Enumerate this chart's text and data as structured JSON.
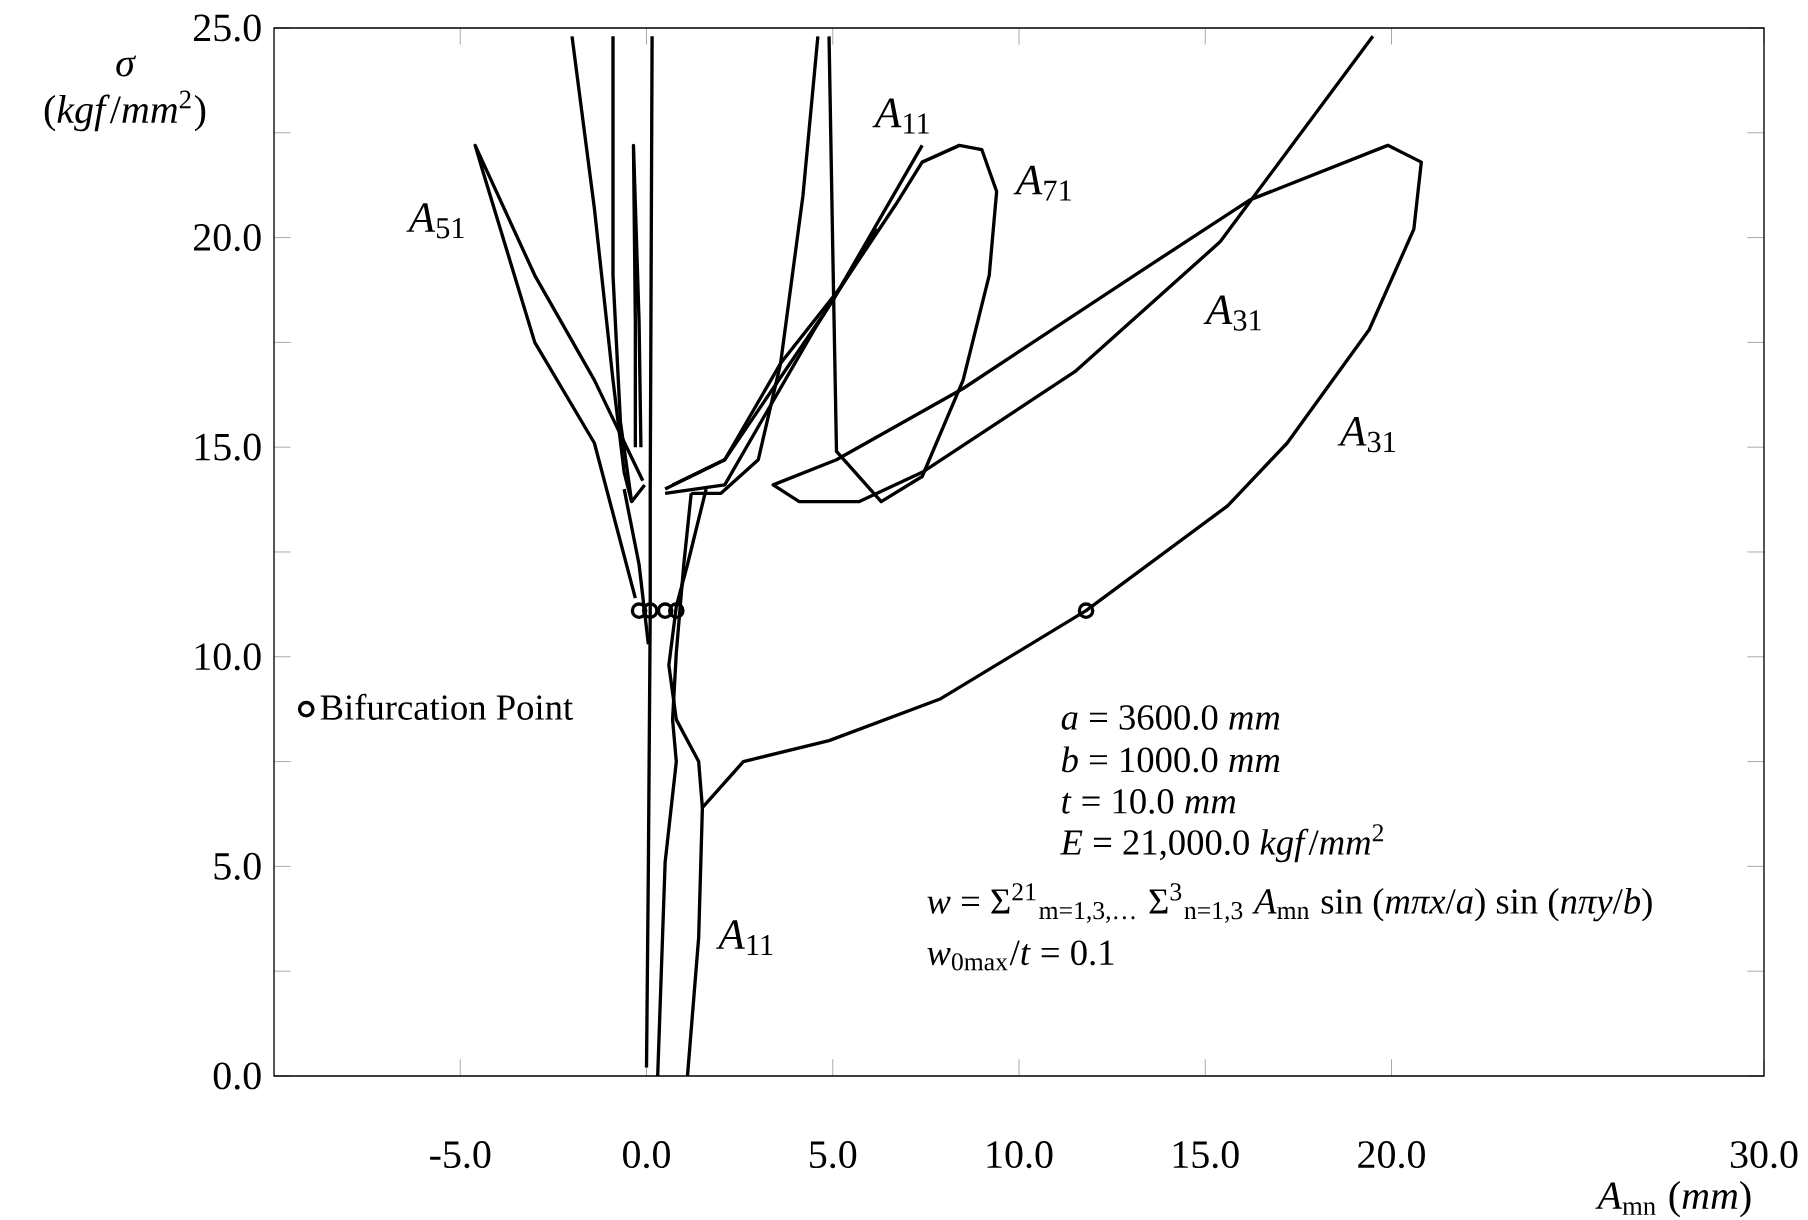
{
  "chart_data": {
    "type": "line",
    "xlabel": "*A*$_{mn}$ (*mm*)",
    "ylabel": "*σ* (*kgf*/*mm*$^{2}$)",
    "xlim": [
      -10,
      30
    ],
    "ylim": [
      0,
      25
    ],
    "xticks": [
      {
        "value": -5,
        "label": "-5.0"
      },
      {
        "value": 0,
        "label": "0.0"
      },
      {
        "value": 5,
        "label": "5.0"
      },
      {
        "value": 10,
        "label": "10.0"
      },
      {
        "value": 15,
        "label": "15.0"
      },
      {
        "value": 20,
        "label": "20.0"
      },
      {
        "value": 30,
        "label": "30.0"
      }
    ],
    "yticks": [
      {
        "value": 0,
        "label": "0.0"
      },
      {
        "value": 2.5,
        "label": null
      },
      {
        "value": 5,
        "label": "5.0"
      },
      {
        "value": 7.5,
        "label": null
      },
      {
        "value": 10,
        "label": "10.0"
      },
      {
        "value": 12.5,
        "label": null
      },
      {
        "value": 15,
        "label": "15.0"
      },
      {
        "value": 17.5,
        "label": null
      },
      {
        "value": 20,
        "label": "20.0"
      },
      {
        "value": 22.5,
        "label": null
      },
      {
        "value": 25,
        "label": "25.0"
      }
    ],
    "legend": "left",
    "series": [
      {
        "type": "line",
        "color": "#000000",
        "x": [
          1.1,
          1.4,
          1.5,
          2.6,
          4.9,
          7.9,
          11.8,
          15.6,
          17.2,
          19.4,
          20.6,
          20.8,
          19.9,
          16.2,
          13.1,
          8.5,
          5.1,
          3.4,
          4.1,
          5.7,
          7.4,
          11.5,
          15.4,
          19.5
        ],
        "values": [
          0,
          3.3,
          6.4,
          7.5,
          8.0,
          9.0,
          11.1,
          13.6,
          15.1,
          17.8,
          20.2,
          21.8,
          22.2,
          20.9,
          19.1,
          16.4,
          14.7,
          14.1,
          13.7,
          13.7,
          14.4,
          16.8,
          19.9,
          24.8
        ]
      },
      {
        "type": "line",
        "color": "#000000",
        "x": [
          4.9,
          5.0,
          5.1,
          6.3,
          7.4,
          8.5,
          9.2,
          9.4,
          9.0,
          8.4,
          7.4,
          6.7,
          5.2,
          3.6,
          2.1,
          0.7
        ],
        "values": [
          24.8,
          19.7,
          14.9,
          13.7,
          14.3,
          16.6,
          19.1,
          21.1,
          22.1,
          22.2,
          21.8,
          20.8,
          18.8,
          17.0,
          14.7,
          14.1
        ]
      },
      {
        "type": "line",
        "color": "#000000",
        "x": [
          7.4,
          5.0,
          2.1,
          0.5
        ],
        "values": [
          22.2,
          18.5,
          14.7,
          14.0
        ]
      },
      {
        "type": "line",
        "color": "#000000",
        "x": [
          6.2,
          4.5,
          2.1,
          0.5
        ],
        "values": [
          20.2,
          17.8,
          14.1,
          13.9
        ]
      },
      {
        "type": "line",
        "color": "#000000",
        "x": [
          4.6,
          4.2,
          3.6,
          3.0,
          2.0,
          1.2
        ],
        "values": [
          24.8,
          21.0,
          17.0,
          14.7,
          13.9,
          13.9
        ]
      },
      {
        "type": "line",
        "color": "#000000",
        "x": [
          -0.3,
          -1.4,
          -3.0,
          -4.4,
          -4.6,
          -3.0,
          -1.4,
          -0.1
        ],
        "values": [
          11.4,
          15.1,
          17.5,
          21.6,
          22.2,
          19.1,
          16.6,
          14.2
        ]
      },
      {
        "type": "line",
        "color": "#000000",
        "x": [
          -2.0,
          -1.4,
          -0.9,
          -0.6,
          -0.4,
          -0.05
        ],
        "values": [
          24.8,
          20.7,
          16.6,
          14.4,
          13.7,
          14.1
        ]
      },
      {
        "type": "line",
        "color": "#000000",
        "x": [
          -0.9,
          -0.9,
          -0.7,
          -0.4
        ],
        "values": [
          24.8,
          19.1,
          15.6,
          13.7
        ]
      },
      {
        "color": "#000000",
        "x": [
          0.0,
          0.05,
          0.1,
          0.1,
          0.15
        ],
        "values": [
          0.2,
          5.0,
          11.1,
          14.0,
          24.8
        ]
      },
      {
        "type": "line",
        "color": "#000000",
        "x": [
          0.3,
          0.5,
          0.8,
          0.7,
          0.8,
          1.0,
          1.2
        ],
        "values": [
          0,
          5.1,
          7.5,
          8.5,
          10.1,
          12.2,
          13.9
        ]
      },
      {
        "type": "line",
        "color": "#000000",
        "x": [
          1.5,
          1.4,
          0.8,
          0.6,
          0.8,
          1.1,
          1.6
        ],
        "values": [
          6.4,
          7.5,
          8.5,
          9.8,
          11.2,
          12.2,
          14.0
        ]
      },
      {
        "type": "line",
        "color": "#000000",
        "x": [
          0.05,
          -0.2,
          -0.6
        ],
        "values": [
          10.3,
          12.2,
          14.0
        ]
      },
      {
        "type": "line",
        "color": "#000000",
        "x": [
          -0.3,
          -0.3,
          -0.35,
          -0.2,
          -0.15
        ],
        "values": [
          15.0,
          18.0,
          22.2,
          18.0,
          15.0
        ]
      },
      {
        "type": "scatter",
        "name": "Bifurcation Point",
        "marker": "circle",
        "color": "#000000",
        "x": [
          -0.2,
          0.1,
          0.5,
          0.8,
          11.8
        ],
        "values": [
          11.1,
          11.1,
          11.1,
          11.1,
          11.1
        ]
      }
    ],
    "annotations": [
      "*A*$_{51}$",
      "*A*$_{11}$",
      "*A*$_{71}$",
      "*A*$_{31}$",
      "*A*$_{31}$",
      "*A*$_{11}$",
      "*a* = 3600.0 *mm*",
      "*b* = 1000.0 *mm*",
      "*t* = 10.0 *mm*",
      "*E* = 21,000.0 *kgf*/*mm*$^{2}$",
      "*w* = Σ$^{21}$$_{m=1,3,…}$ Σ$^{3}$$_{n=1,3}$ *A*$_{mn}$ sin (*mπx*/*a*) sin (*nπy*/*b*)",
      "*w*$_{0max}$/*t* = 0.1"
    ]
  }
}
